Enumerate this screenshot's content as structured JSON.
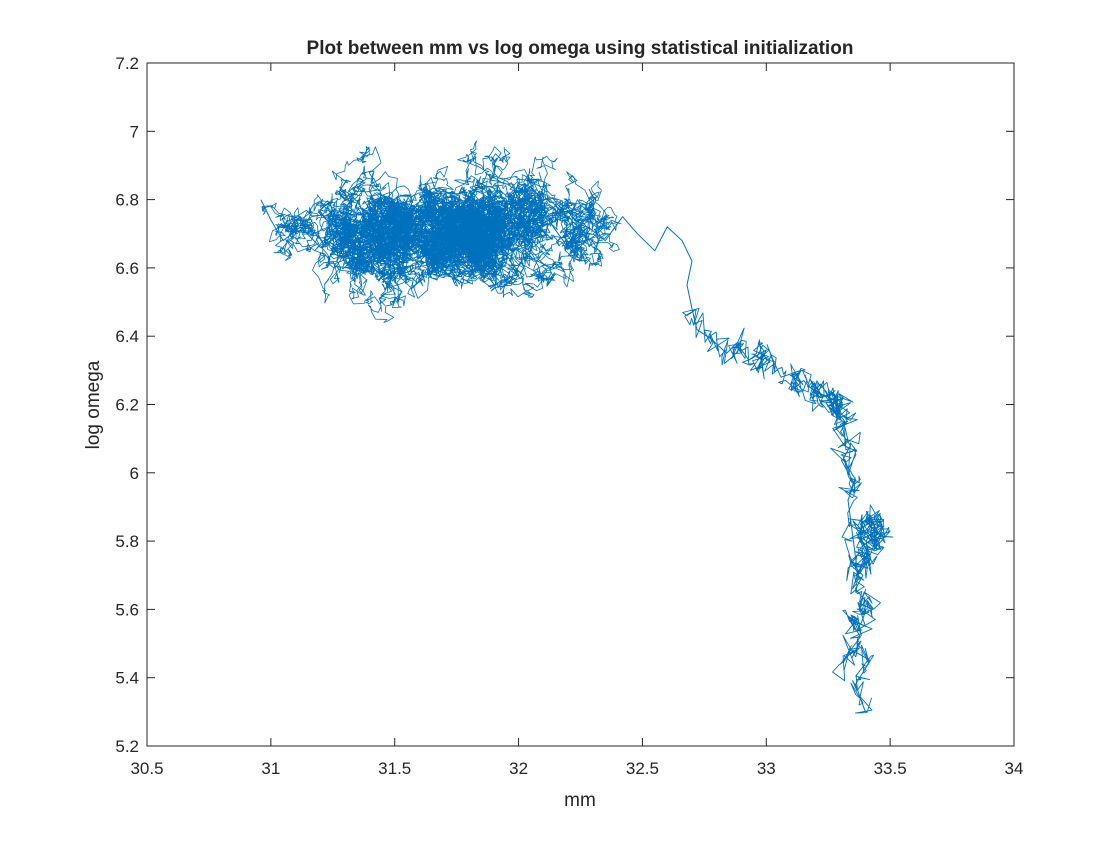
{
  "chart_data": {
    "type": "line",
    "title": "Plot between mm vs log omega using statistical initialization",
    "xlabel": "mm",
    "ylabel": "log omega",
    "xlim": [
      30.5,
      34
    ],
    "ylim": [
      5.2,
      7.2
    ],
    "x_ticks": [
      30.5,
      31,
      31.5,
      32,
      32.5,
      33,
      33.5,
      34
    ],
    "y_ticks": [
      5.2,
      5.4,
      5.6,
      5.8,
      6,
      6.2,
      6.4,
      6.6,
      6.8,
      7,
      7.2
    ],
    "x_tick_labels": [
      "30.5",
      "31",
      "31.5",
      "32",
      "32.5",
      "33",
      "33.5",
      "34"
    ],
    "y_tick_labels": [
      "5.2",
      "5.4",
      "5.6",
      "5.8",
      "6",
      "6.2",
      "6.4",
      "6.6",
      "6.8",
      "7",
      "7.2"
    ],
    "grid": false,
    "legend": "none",
    "series": [
      {
        "color": "#0072BD",
        "description_points": "approximate random-walk trajectory",
        "x": [
          33.4,
          33.36,
          33.42,
          33.35,
          33.3,
          33.38,
          33.33,
          33.4,
          33.37,
          33.43,
          33.36,
          33.39,
          33.34,
          33.41,
          33.38,
          33.45,
          33.4,
          33.47,
          33.42,
          33.5,
          33.44,
          33.38,
          33.46,
          33.4,
          33.35,
          33.42,
          33.37,
          33.33,
          33.36,
          33.31,
          33.34,
          33.3,
          33.33,
          33.28,
          33.31,
          33.26,
          33.29,
          33.24,
          33.27,
          33.22,
          33.18,
          33.22,
          33.15,
          33.1,
          33.14,
          33.06,
          33.02,
          32.96,
          33.0,
          32.93,
          32.88,
          32.84,
          32.78,
          32.72,
          32.7,
          32.68,
          32.7,
          32.66,
          32.6,
          32.55,
          32.48,
          32.42,
          32.35,
          32.28,
          32.2,
          32.12,
          32.05,
          31.98,
          31.9,
          31.82,
          31.74,
          31.66,
          31.58,
          31.5,
          31.42,
          31.35,
          31.28,
          31.2,
          31.12,
          31.05,
          31.0,
          30.96
        ],
        "y": [
          5.3,
          5.38,
          5.45,
          5.48,
          5.44,
          5.52,
          5.58,
          5.55,
          5.62,
          5.6,
          5.66,
          5.7,
          5.74,
          5.72,
          5.78,
          5.82,
          5.86,
          5.84,
          5.8,
          5.83,
          5.78,
          5.85,
          5.88,
          5.82,
          5.86,
          5.75,
          5.7,
          5.92,
          5.98,
          6.04,
          6.08,
          6.12,
          6.16,
          6.18,
          6.22,
          6.2,
          6.16,
          6.24,
          6.2,
          6.26,
          6.23,
          6.22,
          6.27,
          6.24,
          6.3,
          6.28,
          6.34,
          6.3,
          6.36,
          6.33,
          6.38,
          6.35,
          6.39,
          6.42,
          6.48,
          6.55,
          6.62,
          6.68,
          6.72,
          6.65,
          6.7,
          6.75,
          6.68,
          6.72,
          6.66,
          6.74,
          6.7,
          6.78,
          6.72,
          6.68,
          6.75,
          6.7,
          6.64,
          6.72,
          6.68,
          6.74,
          6.7,
          6.66,
          6.72,
          6.68,
          6.74,
          6.8
        ]
      }
    ]
  }
}
